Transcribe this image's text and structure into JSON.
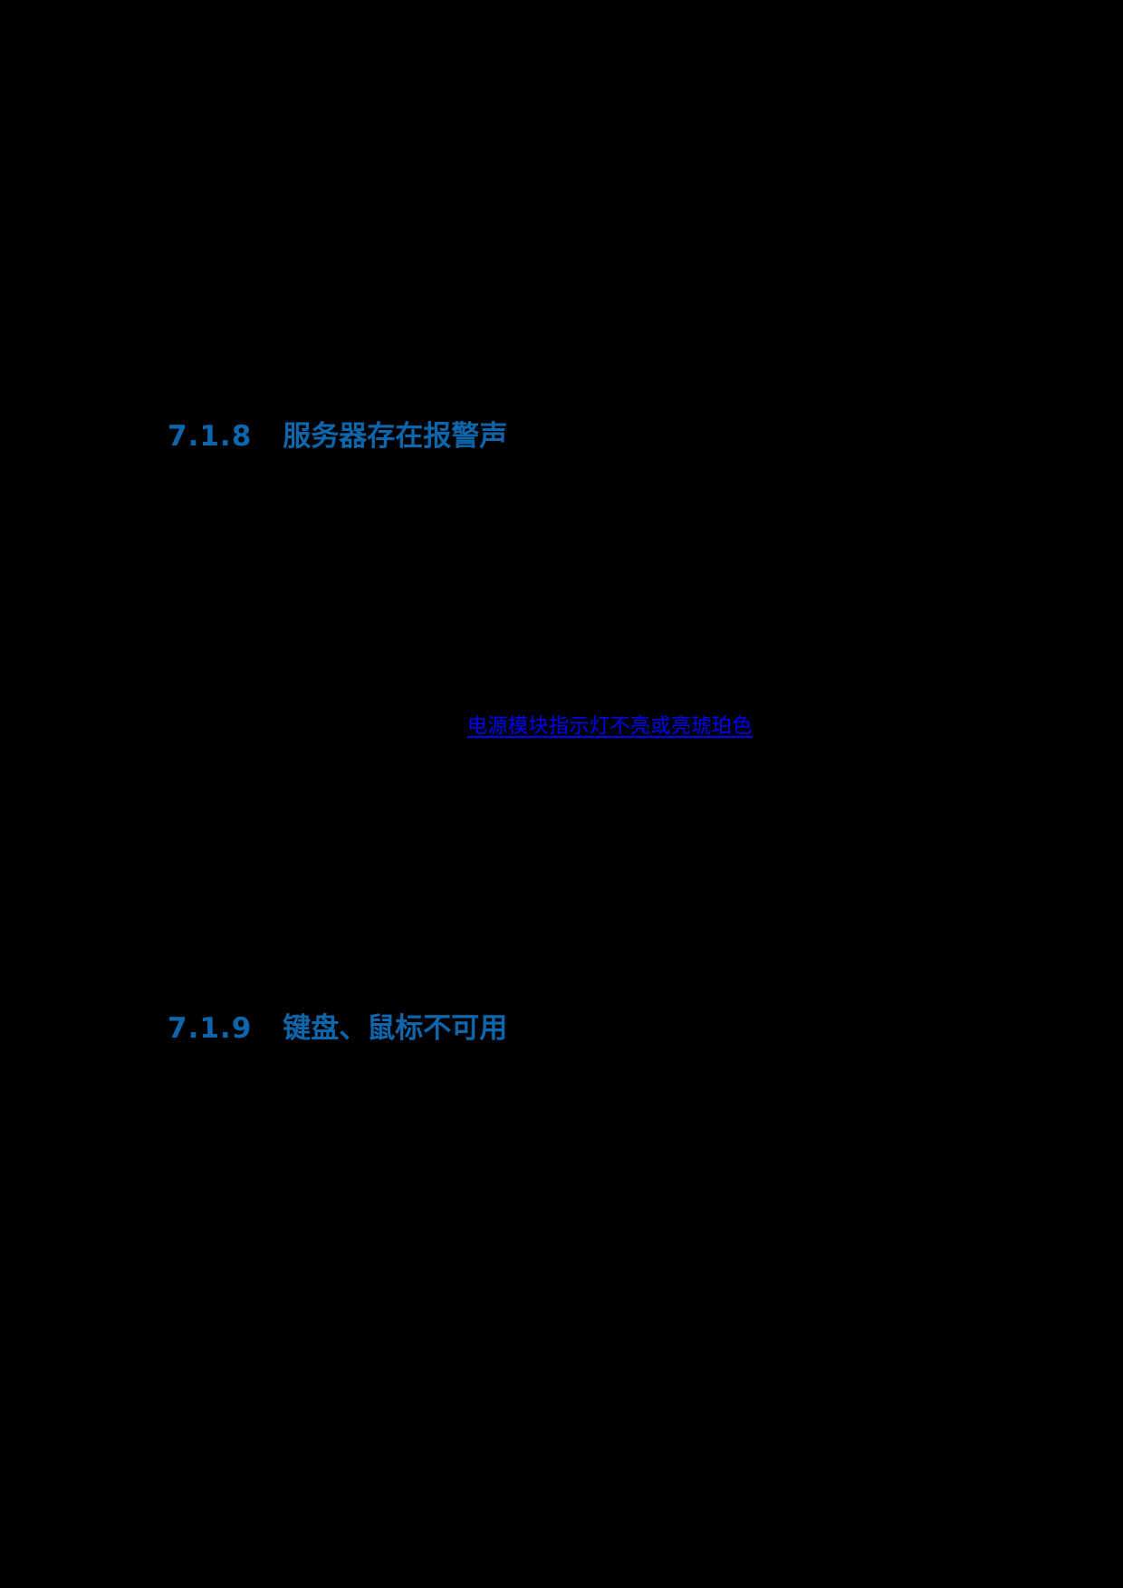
{
  "page": {
    "background_color": "#000000",
    "heading_color": "#0d66ac",
    "link_color": "#0000ff"
  },
  "sections": [
    {
      "number": "7.1.8",
      "title": "服务器存在报警声"
    },
    {
      "number": "7.1.9",
      "title": "键盘、鼠标不可用"
    }
  ],
  "link": {
    "text": "电源模块指示灯不亮或亮琥珀色"
  }
}
